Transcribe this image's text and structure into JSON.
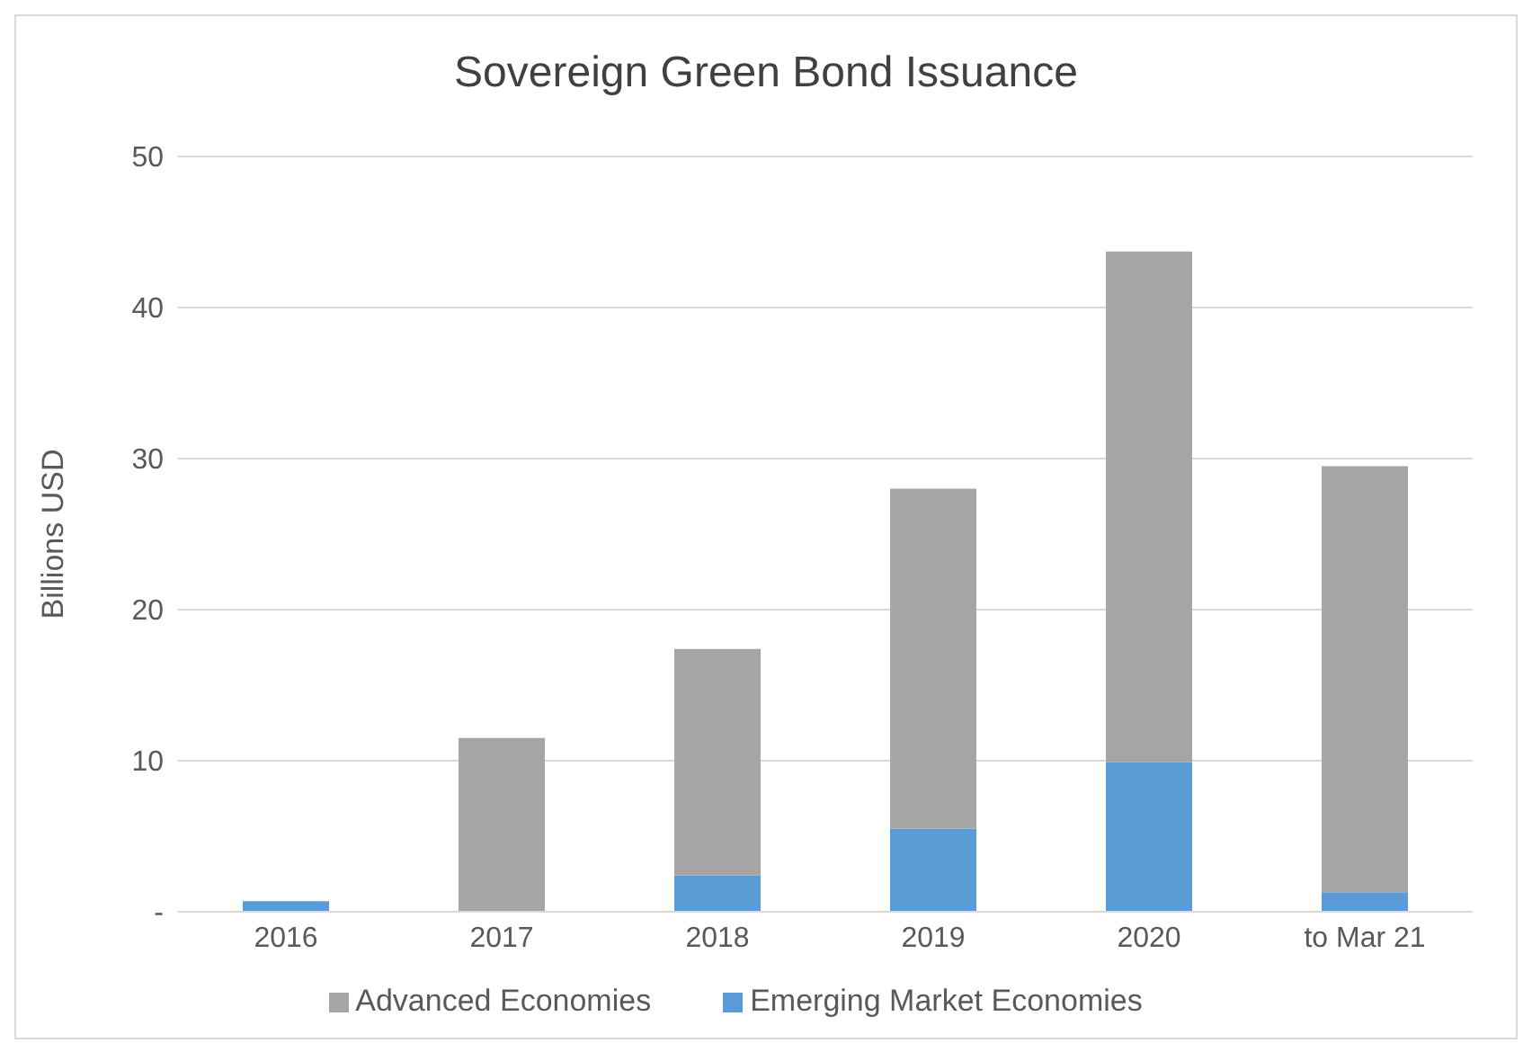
{
  "chart_data": {
    "type": "bar",
    "title": "Sovereign Green Bond Issuance",
    "ylabel": "Billions USD",
    "categories": [
      "2016",
      "2017",
      "2018",
      "2019",
      "2020",
      "to Mar 21"
    ],
    "stacked": true,
    "series": [
      {
        "name": "Emerging Market Economies",
        "color": "#5b9bd5",
        "values": [
          0.7,
          0,
          2.4,
          5.5,
          9.9,
          1.3
        ]
      },
      {
        "name": "Advanced Economies",
        "color": "#a5a5a5",
        "values": [
          0,
          11.5,
          15.0,
          22.5,
          33.8,
          28.2
        ]
      }
    ],
    "ylim": [
      0,
      50
    ],
    "yticks": [
      {
        "value": 0,
        "label": "-"
      },
      10,
      20,
      30,
      40,
      50
    ],
    "grid": "y",
    "legend": "bottom"
  }
}
